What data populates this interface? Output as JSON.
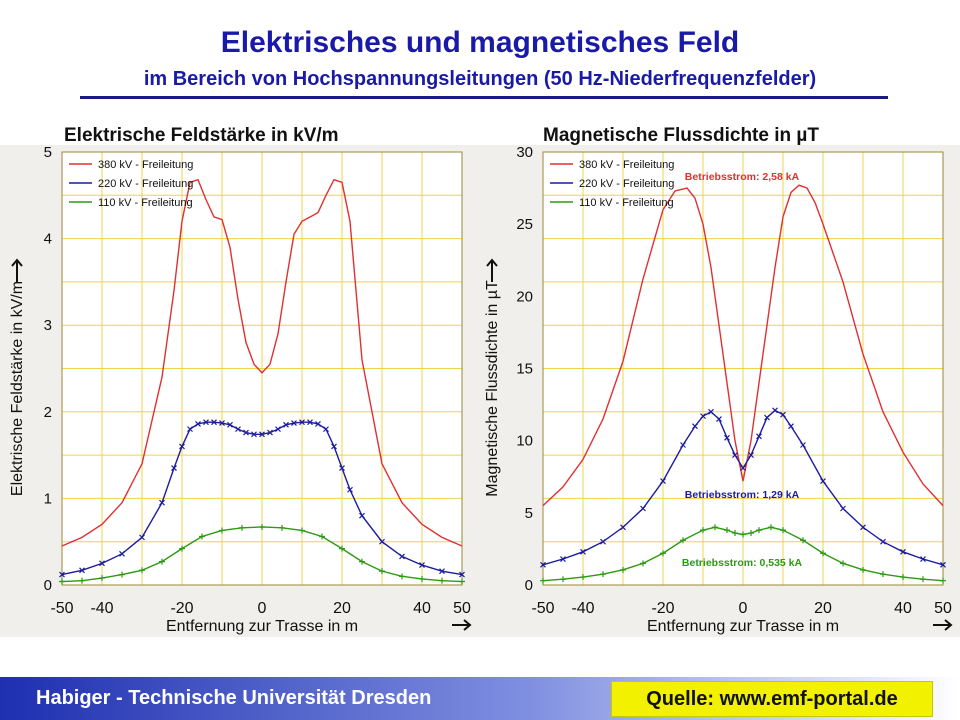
{
  "title": "Elektrisches und magnetisches Feld",
  "subtitle": "im Bereich von Hochspannungsleitungen (50 Hz-Niederfrequenzfelder)",
  "left_heading": "Elektrische Feldstärke in kV/m",
  "right_heading": "Magnetische Flussdichte in µT",
  "footer": "Habiger - Technische Universität Dresden",
  "source": "Quelle: www.emf-portal.de",
  "colors": {
    "red": "#e03030",
    "blue": "#1c1ca0",
    "green": "#2d9a10",
    "grid": "#ecd44a",
    "title": "#1a1aa8"
  },
  "chart_data": [
    {
      "type": "line",
      "xlabel": "Entfernung zur Trasse in m",
      "ylabel": "Elektrische Feldstärke in kV/m",
      "xlim": [
        -50,
        50
      ],
      "ylim": [
        0,
        5
      ],
      "xticks": [
        -50,
        -40,
        -20,
        0,
        20,
        40,
        50
      ],
      "yticks": [
        0,
        1,
        2,
        3,
        4,
        5
      ],
      "grid": true,
      "legend": "top-left",
      "series": [
        {
          "name": "380 kV - Freileitung",
          "color": "#e03030",
          "marker": "none",
          "x": [
            -50,
            -45,
            -40,
            -35,
            -30,
            -25,
            -22,
            -20,
            -18,
            -16,
            -14,
            -12,
            -10,
            -8,
            -6,
            -4,
            -2,
            0,
            2,
            4,
            6,
            8,
            10,
            12,
            14,
            16,
            18,
            20,
            22,
            25,
            30,
            35,
            40,
            45,
            50
          ],
          "y": [
            0.45,
            0.55,
            0.7,
            0.95,
            1.4,
            2.4,
            3.4,
            4.2,
            4.65,
            4.68,
            4.45,
            4.25,
            4.22,
            3.9,
            3.3,
            2.8,
            2.55,
            2.45,
            2.55,
            2.9,
            3.5,
            4.05,
            4.2,
            4.25,
            4.3,
            4.5,
            4.68,
            4.65,
            4.2,
            2.6,
            1.4,
            0.95,
            0.7,
            0.55,
            0.45
          ]
        },
        {
          "name": "220 kV - Freileitung",
          "color": "#1c1ca0",
          "marker": "x",
          "x": [
            -50,
            -45,
            -40,
            -35,
            -30,
            -25,
            -22,
            -20,
            -18,
            -16,
            -14,
            -12,
            -10,
            -8,
            -6,
            -4,
            -2,
            0,
            2,
            4,
            6,
            8,
            10,
            12,
            14,
            16,
            18,
            20,
            22,
            25,
            30,
            35,
            40,
            45,
            50
          ],
          "y": [
            0.12,
            0.17,
            0.25,
            0.36,
            0.55,
            0.95,
            1.35,
            1.6,
            1.8,
            1.86,
            1.88,
            1.88,
            1.87,
            1.85,
            1.8,
            1.76,
            1.74,
            1.74,
            1.76,
            1.8,
            1.85,
            1.87,
            1.88,
            1.88,
            1.86,
            1.8,
            1.6,
            1.35,
            1.1,
            0.8,
            0.5,
            0.33,
            0.23,
            0.16,
            0.12
          ]
        },
        {
          "name": "110 kV - Freileitung",
          "color": "#2d9a10",
          "marker": "+",
          "x": [
            -50,
            -45,
            -40,
            -35,
            -30,
            -25,
            -20,
            -15,
            -10,
            -5,
            0,
            5,
            10,
            15,
            20,
            25,
            30,
            35,
            40,
            45,
            50
          ],
          "y": [
            0.04,
            0.05,
            0.08,
            0.12,
            0.17,
            0.27,
            0.42,
            0.56,
            0.63,
            0.66,
            0.67,
            0.66,
            0.63,
            0.56,
            0.42,
            0.27,
            0.16,
            0.1,
            0.07,
            0.05,
            0.04
          ]
        }
      ]
    },
    {
      "type": "line",
      "xlabel": "Entfernung zur Trasse in m",
      "ylabel": "Magnetische Flussdichte in µT",
      "xlim": [
        -50,
        50
      ],
      "ylim": [
        0,
        30
      ],
      "xticks": [
        -50,
        -40,
        -20,
        0,
        20,
        40,
        50
      ],
      "yticks": [
        0,
        5,
        10,
        15,
        20,
        25,
        30
      ],
      "grid": true,
      "legend": "top-left",
      "annotations": [
        "Betriebsstrom: 2,58 kA",
        "Betriebsstrom: 1,29 kA",
        "Betriebsstrom: 0,535 kA"
      ],
      "series": [
        {
          "name": "380 kV - Freileitung",
          "color": "#e03030",
          "marker": "none",
          "x": [
            -50,
            -45,
            -40,
            -35,
            -30,
            -25,
            -20,
            -17,
            -14,
            -12,
            -10,
            -8,
            -6,
            -4,
            -2,
            0,
            2,
            4,
            6,
            8,
            10,
            12,
            14,
            16,
            18,
            20,
            25,
            30,
            35,
            40,
            45,
            50
          ],
          "y": [
            5.5,
            6.8,
            8.7,
            11.5,
            15.5,
            21.2,
            26,
            27.3,
            27.5,
            26.8,
            25,
            22,
            18,
            14,
            10,
            7.2,
            10,
            14,
            18,
            22,
            25.5,
            27.2,
            27.7,
            27.5,
            26.5,
            25,
            21,
            16,
            12,
            9.2,
            7,
            5.5
          ]
        },
        {
          "name": "220 kV - Freileitung",
          "color": "#1c1ca0",
          "marker": "x",
          "x": [
            -50,
            -45,
            -40,
            -35,
            -30,
            -25,
            -20,
            -15,
            -12,
            -10,
            -8,
            -6,
            -4,
            -2,
            0,
            2,
            4,
            6,
            8,
            10,
            12,
            15,
            20,
            25,
            30,
            35,
            40,
            45,
            50
          ],
          "y": [
            1.4,
            1.8,
            2.3,
            3,
            4,
            5.3,
            7.2,
            9.7,
            11,
            11.7,
            12,
            11.5,
            10.2,
            9,
            8.1,
            9,
            10.3,
            11.6,
            12.1,
            11.8,
            11,
            9.7,
            7.2,
            5.3,
            4,
            3,
            2.3,
            1.8,
            1.4
          ]
        },
        {
          "name": "110 kV - Freileitung",
          "color": "#2d9a10",
          "marker": "+",
          "x": [
            -50,
            -45,
            -40,
            -35,
            -30,
            -25,
            -20,
            -15,
            -10,
            -7,
            -4,
            -2,
            0,
            2,
            4,
            7,
            10,
            15,
            20,
            25,
            30,
            35,
            40,
            45,
            50
          ],
          "y": [
            0.3,
            0.4,
            0.55,
            0.75,
            1.05,
            1.5,
            2.2,
            3.1,
            3.8,
            4,
            3.8,
            3.6,
            3.5,
            3.6,
            3.8,
            4,
            3.8,
            3.1,
            2.2,
            1.5,
            1.05,
            0.75,
            0.55,
            0.4,
            0.3
          ]
        }
      ]
    }
  ]
}
